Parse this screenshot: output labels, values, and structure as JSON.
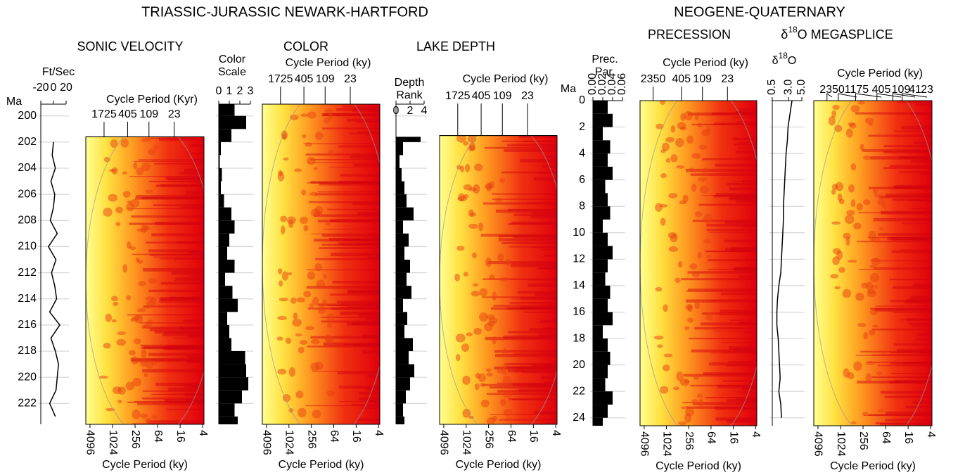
{
  "titles": [
    "TRIASSIC-JURASSIC NEWARK-HARTFORD",
    "NEOGENE-QUATERNARY"
  ],
  "chart_data": [
    {
      "type": "line",
      "header": [
        "Ft/Sec"
      ],
      "ylabel": "Ma",
      "ylim": [
        199.1,
        223.6
      ],
      "yticks": [
        200,
        202,
        204,
        206,
        208,
        210,
        212,
        214,
        216,
        218,
        220,
        222
      ],
      "xlim": [
        -20,
        20
      ],
      "xticks": [
        -20,
        0,
        20
      ],
      "y": [
        202,
        203,
        204,
        205,
        206,
        207,
        208,
        209,
        210,
        211,
        212,
        213,
        214,
        215,
        216,
        217,
        218,
        219,
        220,
        221,
        222,
        223
      ],
      "values": [
        0,
        -2,
        3,
        -4,
        2,
        0,
        -5,
        6,
        -8,
        4,
        -3,
        2,
        5,
        -6,
        10,
        -4,
        3,
        8,
        6,
        4,
        -6,
        3
      ]
    },
    {
      "type": "heatmap",
      "title": "SONIC VELOCITY",
      "top_label": "Cycle Period (Kyr)",
      "top_ticks": [
        1725,
        405,
        109,
        23
      ],
      "xlim": [
        5300,
        3.7
      ],
      "xticks": [
        4096,
        1024,
        256,
        64,
        16,
        4
      ],
      "xlabel": "Cycle Period (ky)",
      "ylim": [
        199.1,
        223.6
      ],
      "y_range": [
        201.6,
        223.6
      ]
    },
    {
      "type": "bar",
      "header": [
        "Color",
        "Scale"
      ],
      "ylim": [
        199.1,
        223.6
      ],
      "xlim": [
        0,
        3
      ],
      "xticks": [
        0,
        1,
        2,
        3
      ],
      "y": [
        199.1,
        200,
        201,
        202,
        203,
        204,
        205,
        206,
        207,
        208,
        209,
        210,
        211,
        212,
        213,
        214,
        215,
        216,
        217,
        218,
        219,
        220,
        221,
        222,
        223
      ],
      "values": [
        1.5,
        2.6,
        1.2,
        0.2,
        0.1,
        0.3,
        0.2,
        0.5,
        1.2,
        1.5,
        1.0,
        0.8,
        1.5,
        0.6,
        1.3,
        1.8,
        0.8,
        1.0,
        1.2,
        2.5,
        2.6,
        2.8,
        2.2,
        1.5,
        1.8
      ]
    },
    {
      "type": "heatmap",
      "title": "COLOR",
      "top_label": "Cycle Period (ky)",
      "top_ticks": [
        1725,
        405,
        109,
        23
      ],
      "xlim": [
        5300,
        3.7
      ],
      "xticks": [
        4096,
        1024,
        256,
        64,
        16,
        4
      ],
      "xlabel": "Cycle Period (ky)",
      "ylim": [
        199.1,
        223.6
      ],
      "y_range": [
        199.1,
        223.6
      ]
    },
    {
      "type": "bar",
      "header": [
        "Depth",
        "Rank"
      ],
      "ylim": [
        199.1,
        223.6
      ],
      "xlim": [
        0,
        4
      ],
      "xticks": [
        0,
        2,
        4
      ],
      "y": [
        201.6,
        202,
        203,
        204,
        205,
        206,
        207,
        208,
        209,
        210,
        211,
        212,
        213,
        214,
        215,
        216,
        217,
        218,
        219,
        220,
        221,
        222,
        223
      ],
      "values": [
        3.5,
        1.0,
        0.5,
        0.8,
        1.2,
        1.5,
        2.5,
        1.0,
        1.8,
        1.2,
        2.0,
        1.5,
        2.2,
        1.0,
        1.6,
        1.2,
        2.4,
        1.8,
        2.6,
        2.0,
        1.4,
        1.0,
        1.2
      ]
    },
    {
      "type": "heatmap",
      "title": "LAKE DEPTH",
      "top_label": "Cycle Period (ky)",
      "top_ticks": [
        1725,
        405,
        109,
        23
      ],
      "xlim": [
        5300,
        3.7
      ],
      "xticks": [
        4096,
        1024,
        256,
        64,
        16,
        4
      ],
      "xlabel": "Cycle Period (ky)",
      "ylim": [
        199.1,
        223.6
      ],
      "y_range": [
        201.5,
        223.6
      ]
    },
    {
      "type": "bar",
      "header": [
        "Prec.",
        "Par."
      ],
      "ylabel": "Ma",
      "ylim": [
        0,
        24.6
      ],
      "yticks": [
        0,
        2,
        4,
        6,
        8,
        10,
        12,
        14,
        16,
        18,
        20,
        22,
        24
      ],
      "xlim": [
        0,
        0.06
      ],
      "xticks": [
        {
          "value": 0,
          "label": "0.00"
        },
        {
          "value": 0.02,
          "label": "0.02"
        },
        {
          "value": 0.04,
          "label": "0.04"
        },
        {
          "value": 0.06,
          "label": "0.06"
        }
      ],
      "y": [
        0,
        1,
        2,
        3,
        4,
        5,
        6,
        7,
        8,
        9,
        10,
        11,
        12,
        13,
        14,
        15,
        16,
        17,
        18,
        19,
        20,
        21,
        22,
        23,
        24
      ],
      "values": [
        0.03,
        0.04,
        0.02,
        0.035,
        0.03,
        0.04,
        0.025,
        0.03,
        0.035,
        0.02,
        0.03,
        0.04,
        0.03,
        0.025,
        0.035,
        0.03,
        0.04,
        0.02,
        0.03,
        0.035,
        0.03,
        0.025,
        0.04,
        0.03,
        0.02
      ]
    },
    {
      "type": "heatmap",
      "title": "PRECESSION",
      "top_label": "Cycle Period (ky)",
      "top_ticks": [
        2350,
        405,
        109,
        23
      ],
      "xlim": [
        5300,
        3.7
      ],
      "xticks": [
        4096,
        1024,
        256,
        64,
        16,
        4
      ],
      "xlabel": "Cycle Period (ky)",
      "ylim": [
        0,
        24.6
      ],
      "y_range": [
        0,
        24.6
      ]
    },
    {
      "type": "line",
      "header": [
        "δ18O"
      ],
      "ylim": [
        0,
        24.6
      ],
      "xlim": [
        0.5,
        5
      ],
      "xticks": [
        0.5,
        {
          "value": 3,
          "label": "3.0"
        },
        {
          "value": 5,
          "label": "5.0"
        }
      ],
      "y": [
        0,
        1,
        2,
        3,
        4,
        5,
        6,
        7,
        8,
        9,
        10,
        11,
        12,
        13,
        14,
        15,
        16,
        17,
        18,
        19,
        20,
        21,
        22,
        23,
        24
      ],
      "values": [
        3.5,
        3.2,
        2.9,
        2.8,
        2.6,
        2.5,
        2.4,
        2.3,
        2.2,
        2.2,
        2.1,
        2.0,
        1.9,
        1.8,
        1.5,
        1.3,
        1.2,
        1.2,
        1.4,
        1.5,
        1.6,
        1.7,
        1.5,
        1.8,
        1.9
      ]
    },
    {
      "type": "heatmap",
      "title": "δ18O MEGASPLICE",
      "top_label": "Cycle Period (ky)",
      "top_ticks": [
        2350,
        1175,
        405,
        109,
        41,
        23
      ],
      "xlim": [
        5300,
        3.7
      ],
      "xticks": [
        4096,
        1024,
        256,
        64,
        16,
        4
      ],
      "xlabel": "Cycle Period (ky)",
      "ylim": [
        0,
        24.6
      ],
      "y_range": [
        0,
        24.6
      ]
    }
  ]
}
